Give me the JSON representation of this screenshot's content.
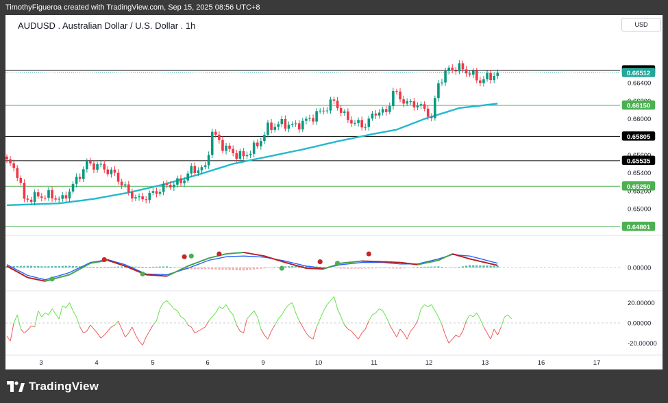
{
  "header": {
    "attribution": "TimothyFigueroa created with TradingView.com, Sep 15, 2025 08:56 UTC+8"
  },
  "symbol": {
    "title": "AUDUSD . Australian Dollar / U.S. Dollar . 1h",
    "currency": "USD"
  },
  "footer": {
    "brand": "TradingView"
  },
  "colors": {
    "up": "#089981",
    "down": "#f23645",
    "ma": "#22b8cf",
    "osc_fast": "#2962ff",
    "osc_slow_up": "#43a047",
    "osc_slow_down": "#b71c1c",
    "hline_green": "#4caf50",
    "hline_black": "#000000",
    "current": "#26a69a"
  },
  "chart_data": [
    {
      "type": "candlestick",
      "title": "AUDUSD . Australian Dollar / U.S. Dollar . 1h",
      "ylim": [
        0.6475,
        0.6685
      ],
      "y_ticks": [
        "0.66400",
        "0.66200",
        "0.66000",
        "0.65600",
        "0.65400",
        "0.65200",
        "0.65000"
      ],
      "x_ticks": [
        "3",
        "4",
        "5",
        "6",
        "9",
        "10",
        "11",
        "12",
        "13",
        "16",
        "17"
      ],
      "path": [
        [
          0,
          0.6553
        ],
        [
          3,
          0.654
        ],
        [
          5,
          0.651
        ],
        [
          9,
          0.6514
        ],
        [
          12,
          0.6515
        ],
        [
          16,
          0.651
        ],
        [
          19,
          0.6526
        ],
        [
          23,
          0.655
        ],
        [
          27,
          0.6547
        ],
        [
          31,
          0.6538
        ],
        [
          35,
          0.6518
        ],
        [
          38,
          0.651
        ],
        [
          42,
          0.6517
        ],
        [
          46,
          0.6526
        ],
        [
          50,
          0.653
        ],
        [
          53,
          0.6543
        ],
        [
          57,
          0.6545
        ],
        [
          59,
          0.6585
        ],
        [
          62,
          0.657
        ],
        [
          65,
          0.6562
        ],
        [
          68,
          0.6558
        ],
        [
          72,
          0.6571
        ],
        [
          75,
          0.659
        ],
        [
          79,
          0.6595
        ],
        [
          83,
          0.6592
        ],
        [
          87,
          0.66
        ],
        [
          91,
          0.661
        ],
        [
          94,
          0.662
        ],
        [
          97,
          0.6603
        ],
        [
          100,
          0.6595
        ],
        [
          103,
          0.6593
        ],
        [
          106,
          0.6608
        ],
        [
          109,
          0.6607
        ],
        [
          111,
          0.663
        ],
        [
          115,
          0.6617
        ],
        [
          118,
          0.6616
        ],
        [
          121,
          0.6607
        ],
        [
          122,
          0.66
        ],
        [
          124,
          0.664
        ],
        [
          127,
          0.6655
        ],
        [
          130,
          0.6657
        ],
        [
          133,
          0.6651
        ],
        [
          136,
          0.6642
        ],
        [
          138,
          0.6646
        ],
        [
          141,
          0.665
        ]
      ],
      "moving_average": [
        [
          0,
          0.6504
        ],
        [
          15,
          0.6506
        ],
        [
          25,
          0.6511
        ],
        [
          35,
          0.6518
        ],
        [
          45,
          0.6527
        ],
        [
          55,
          0.6538
        ],
        [
          65,
          0.655
        ],
        [
          75,
          0.6558
        ],
        [
          85,
          0.6566
        ],
        [
          95,
          0.6575
        ],
        [
          105,
          0.6583
        ],
        [
          112,
          0.6588
        ],
        [
          120,
          0.66
        ],
        [
          130,
          0.6612
        ],
        [
          141,
          0.6617
        ]
      ],
      "price_labels": [
        {
          "value": "0.66541",
          "level": 0.66541,
          "style": "black"
        },
        {
          "value": "0.66512",
          "level": 0.66512,
          "style": "current"
        },
        {
          "value": "0.66150",
          "level": 0.6615,
          "style": "green"
        },
        {
          "value": "0.65805",
          "level": 0.65805,
          "style": "black"
        },
        {
          "value": "0.65535",
          "level": 0.65535,
          "style": "black"
        },
        {
          "value": "0.65250",
          "level": 0.6525,
          "style": "green"
        },
        {
          "value": "0.64801",
          "level": 0.64801,
          "style": "green"
        }
      ]
    },
    {
      "type": "line",
      "name": "oscillator",
      "ylim": [
        -1,
        1
      ],
      "y_ticks": [
        "0.00000"
      ],
      "fast": [
        [
          0,
          0.2
        ],
        [
          6,
          -0.55
        ],
        [
          11,
          -0.85
        ],
        [
          18,
          -0.35
        ],
        [
          24,
          0.35
        ],
        [
          29,
          0.55
        ],
        [
          34,
          0.2
        ],
        [
          40,
          -0.45
        ],
        [
          46,
          -0.5
        ],
        [
          52,
          -0.05
        ],
        [
          58,
          0.5
        ],
        [
          63,
          0.75
        ],
        [
          68,
          0.8
        ],
        [
          74,
          0.72
        ],
        [
          80,
          0.45
        ],
        [
          86,
          0.1
        ],
        [
          91,
          -0.05
        ],
        [
          96,
          0.2
        ],
        [
          102,
          0.35
        ],
        [
          108,
          0.35
        ],
        [
          113,
          0.25
        ],
        [
          118,
          0.25
        ],
        [
          124,
          0.6
        ],
        [
          128,
          0.9
        ],
        [
          133,
          0.8
        ],
        [
          141,
          0.3
        ]
      ],
      "slow": [
        [
          0,
          0.1
        ],
        [
          6,
          -0.7
        ],
        [
          11,
          -0.95
        ],
        [
          18,
          -0.5
        ],
        [
          24,
          0.3
        ],
        [
          29,
          0.5
        ],
        [
          34,
          0.1
        ],
        [
          40,
          -0.5
        ],
        [
          46,
          -0.6
        ],
        [
          52,
          0.1
        ],
        [
          58,
          0.65
        ],
        [
          63,
          0.95
        ],
        [
          68,
          1.05
        ],
        [
          74,
          0.8
        ],
        [
          80,
          0.35
        ],
        [
          86,
          -0.05
        ],
        [
          91,
          -0.1
        ],
        [
          96,
          0.3
        ],
        [
          102,
          0.45
        ],
        [
          108,
          0.4
        ],
        [
          113,
          0.35
        ],
        [
          118,
          0.2
        ],
        [
          124,
          0.5
        ],
        [
          128,
          0.95
        ],
        [
          133,
          0.6
        ],
        [
          141,
          0.15
        ]
      ],
      "crosses": [
        {
          "x": 13,
          "y": -0.8,
          "kind": "up"
        },
        {
          "x": 28,
          "y": 0.55,
          "kind": "down"
        },
        {
          "x": 39,
          "y": -0.45,
          "kind": "up"
        },
        {
          "x": 51,
          "y": 0.75,
          "kind": "down"
        },
        {
          "x": 53,
          "y": 0.8,
          "kind": "up"
        },
        {
          "x": 61,
          "y": 0.95,
          "kind": "down"
        },
        {
          "x": 79,
          "y": -0.05,
          "kind": "up"
        },
        {
          "x": 90,
          "y": 0.4,
          "kind": "down"
        },
        {
          "x": 95,
          "y": 0.3,
          "kind": "up"
        },
        {
          "x": 104,
          "y": 0.95,
          "kind": "down"
        }
      ]
    },
    {
      "type": "line",
      "name": "momentum",
      "ylim": [
        -27,
        30
      ],
      "y_ticks": [
        "20.00000",
        "0.00000",
        "-20.00000"
      ],
      "values": [
        -13,
        -18,
        0,
        8,
        -6,
        -10,
        -7,
        -3,
        -4,
        12,
        6,
        10,
        8,
        14,
        9,
        4,
        17,
        15,
        20,
        12,
        6,
        -4,
        -10,
        -8,
        -2,
        -6,
        -10,
        -15,
        -12,
        -8,
        -4,
        -2,
        2,
        -6,
        -14,
        -10,
        -4,
        -12,
        -18,
        -22,
        -14,
        -8,
        -2,
        2,
        14,
        20,
        22,
        18,
        14,
        12,
        6,
        4,
        -2,
        -4,
        -10,
        -8,
        -6,
        -4,
        2,
        6,
        10,
        16,
        14,
        18,
        12,
        8,
        -2,
        -8,
        -10,
        4,
        8,
        12,
        6,
        -6,
        -12,
        -16,
        -8,
        -2,
        4,
        8,
        14,
        18,
        20,
        10,
        2,
        -4,
        -10,
        -14,
        -16,
        -4,
        4,
        12,
        18,
        22,
        26,
        14,
        6,
        -2,
        -6,
        -8,
        -12,
        -16,
        -10,
        -6,
        2,
        8,
        10,
        14,
        12,
        6,
        -2,
        -8,
        -14,
        -6,
        -10,
        -16,
        -8,
        -4,
        2,
        14,
        18,
        16,
        18,
        12,
        6,
        -2,
        -12,
        -20,
        -16,
        -12,
        -14,
        -8,
        2,
        8,
        6,
        10,
        4,
        -4,
        -10,
        -16,
        -6,
        -12,
        -4,
        6,
        8,
        4
      ]
    }
  ]
}
